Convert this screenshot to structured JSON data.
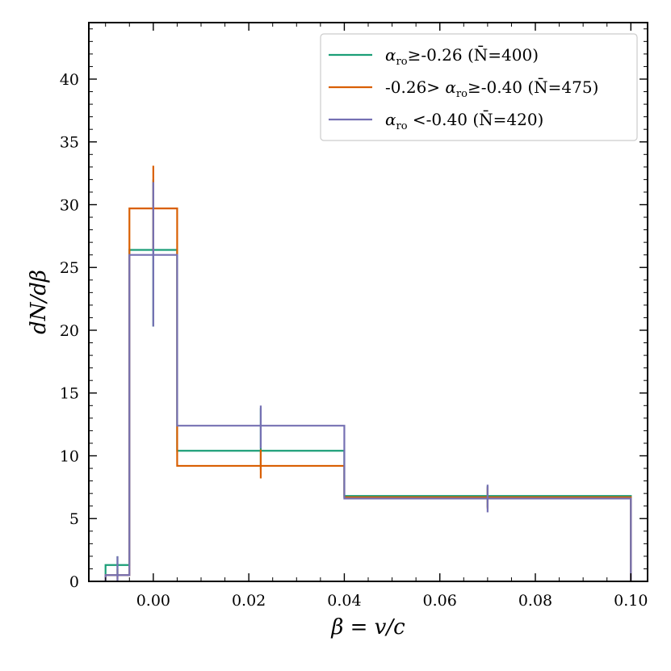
{
  "chart_data": {
    "type": "step-histogram",
    "xlabel": "β = v/c",
    "ylabel": "dN/dβ",
    "xlim": [
      -0.0135,
      0.1035
    ],
    "ylim": [
      0,
      44.5
    ],
    "xticks": [
      0.0,
      0.02,
      0.04,
      0.06,
      0.08,
      0.1
    ],
    "xtick_labels": [
      "0.00",
      "0.02",
      "0.04",
      "0.06",
      "0.08",
      "0.10"
    ],
    "yticks": [
      0,
      5,
      10,
      15,
      20,
      25,
      30,
      35,
      40
    ],
    "ytick_labels": [
      "0",
      "5",
      "10",
      "15",
      "20",
      "25",
      "30",
      "35",
      "40"
    ],
    "bin_edges": [
      -0.01,
      -0.005,
      0.005,
      0.04,
      0.1
    ],
    "legend_position": "top-right",
    "series": [
      {
        "name": "αro≥-0.26 (N̄=400)",
        "legend_parts": {
          "pre": "",
          "sym": "α",
          "sub": "ro",
          "post": "≥-0.26 (N̄=400)"
        },
        "color": "#1b9e77",
        "values": [
          1.3,
          26.4,
          10.4,
          6.8
        ],
        "errors": [
          {
            "x": -0.0075,
            "y": 1.3,
            "lo": 0.5,
            "hi": 2.0
          },
          {
            "x": 0.0,
            "y": 26.4,
            "lo": 20.3,
            "hi": 32.0
          },
          {
            "x": 0.0225,
            "y": 10.4,
            "lo": 8.9,
            "hi": 13.8
          },
          {
            "x": 0.07,
            "y": 6.8,
            "lo": 5.9,
            "hi": 7.6
          }
        ]
      },
      {
        "name": "-0.26> αro≥-0.40 (N̄=475)",
        "legend_parts": {
          "pre": "-0.26> ",
          "sym": "α",
          "sub": "ro",
          "post": "≥-0.40 (N̄=475)"
        },
        "color": "#d95f02",
        "values": [
          0.5,
          29.7,
          9.2,
          6.7
        ],
        "errors": [
          {
            "x": -0.0075,
            "y": 0.5,
            "lo": 0.1,
            "hi": 1.0
          },
          {
            "x": 0.0,
            "y": 29.7,
            "lo": 26.4,
            "hi": 33.1
          },
          {
            "x": 0.0225,
            "y": 9.2,
            "lo": 8.2,
            "hi": 10.5
          },
          {
            "x": 0.07,
            "y": 6.7,
            "lo": 5.8,
            "hi": 7.5
          }
        ]
      },
      {
        "name": "αro <-0.40 (N̄=420)",
        "legend_parts": {
          "pre": "",
          "sym": "α",
          "sub": "ro",
          "post": " <-0.40 (N̄=420)"
        },
        "color": "#7570b3",
        "values": [
          0.5,
          26.0,
          12.4,
          6.6
        ],
        "errors": [
          {
            "x": -0.0075,
            "y": 0.5,
            "lo": 0.0,
            "hi": 2.0
          },
          {
            "x": 0.0,
            "y": 26.0,
            "lo": 20.3,
            "hi": 31.8
          },
          {
            "x": 0.0225,
            "y": 12.4,
            "lo": 10.6,
            "hi": 14.0
          },
          {
            "x": 0.07,
            "y": 6.6,
            "lo": 5.5,
            "hi": 7.7
          }
        ]
      }
    ]
  }
}
